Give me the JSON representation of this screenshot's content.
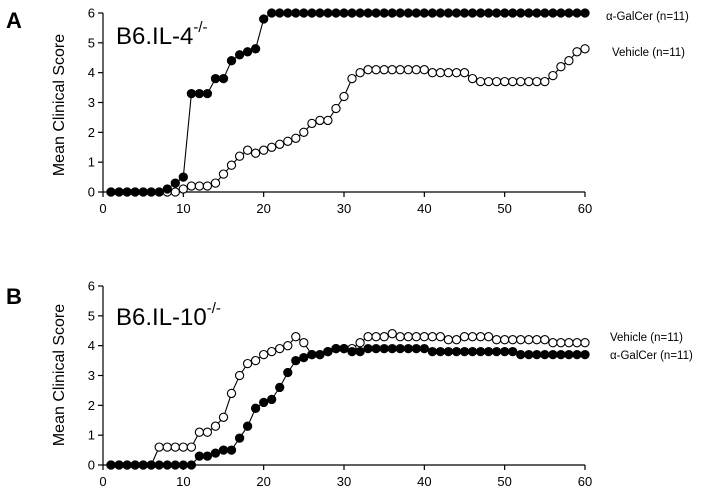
{
  "chart_data": [
    {
      "type": "line",
      "panel": "A",
      "strain": {
        "main": "B6.IL-4",
        "sup": "-/-"
      },
      "xlabel": "",
      "ylabel": "Mean Clinical Score",
      "xlim": [
        0,
        60
      ],
      "ylim": [
        0,
        6
      ],
      "xticks": [
        0,
        10,
        20,
        30,
        40,
        50,
        60
      ],
      "yticks": [
        0,
        1,
        2,
        3,
        4,
        5,
        6
      ],
      "grid": false,
      "legend_placement": "right",
      "series": [
        {
          "name": "α-GalCer (n=11)",
          "marker": "filled-circle",
          "color": "#000000",
          "x": [
            1,
            2,
            3,
            4,
            5,
            6,
            7,
            8,
            9,
            10,
            11,
            12,
            13,
            14,
            15,
            16,
            17,
            18,
            19,
            20,
            21,
            22,
            23,
            24,
            25,
            26,
            27,
            28,
            29,
            30,
            31,
            32,
            33,
            34,
            35,
            36,
            37,
            38,
            39,
            40,
            41,
            42,
            43,
            44,
            45,
            46,
            47,
            48,
            49,
            50,
            51,
            52,
            53,
            54,
            55,
            56,
            57,
            58,
            59,
            60
          ],
          "y": [
            0,
            0,
            0,
            0,
            0,
            0,
            0,
            0.1,
            0.3,
            0.5,
            3.3,
            3.3,
            3.3,
            3.8,
            3.8,
            4.4,
            4.6,
            4.7,
            4.8,
            5.8,
            6,
            6,
            6,
            6,
            6,
            6,
            6,
            6,
            6,
            6,
            6,
            6,
            6,
            6,
            6,
            6,
            6,
            6,
            6,
            6,
            6,
            6,
            6,
            6,
            6,
            6,
            6,
            6,
            6,
            6,
            6,
            6,
            6,
            6,
            6,
            6,
            6,
            6,
            6,
            6
          ]
        },
        {
          "name": "Vehicle (n=11)",
          "marker": "open-circle",
          "color": "#000000",
          "x": [
            1,
            2,
            3,
            4,
            5,
            6,
            7,
            8,
            9,
            10,
            11,
            12,
            13,
            14,
            15,
            16,
            17,
            18,
            19,
            20,
            21,
            22,
            23,
            24,
            25,
            26,
            27,
            28,
            29,
            30,
            31,
            32,
            33,
            34,
            35,
            36,
            37,
            38,
            39,
            40,
            41,
            42,
            43,
            44,
            45,
            46,
            47,
            48,
            49,
            50,
            51,
            52,
            53,
            54,
            55,
            56,
            57,
            58,
            59,
            60
          ],
          "y": [
            0,
            0,
            0,
            0,
            0,
            0,
            0,
            0,
            0,
            0.1,
            0.2,
            0.2,
            0.2,
            0.3,
            0.6,
            0.9,
            1.2,
            1.4,
            1.3,
            1.4,
            1.5,
            1.6,
            1.7,
            1.8,
            2.0,
            2.3,
            2.4,
            2.4,
            2.8,
            3.2,
            3.8,
            4.0,
            4.1,
            4.1,
            4.1,
            4.1,
            4.1,
            4.1,
            4.1,
            4.1,
            4.0,
            4.0,
            4.0,
            4.0,
            4.0,
            3.8,
            3.7,
            3.7,
            3.7,
            3.7,
            3.7,
            3.7,
            3.7,
            3.7,
            3.7,
            3.9,
            4.2,
            4.4,
            4.7,
            4.8
          ]
        }
      ]
    },
    {
      "type": "line",
      "panel": "B",
      "strain": {
        "main": "B6.IL-10",
        "sup": "-/-"
      },
      "xlabel": "",
      "ylabel": "Mean Clinical Score",
      "xlim": [
        0,
        60
      ],
      "ylim": [
        0,
        6
      ],
      "xticks": [
        0,
        10,
        20,
        30,
        40,
        50,
        60
      ],
      "yticks": [
        0,
        1,
        2,
        3,
        4,
        5,
        6
      ],
      "grid": false,
      "legend_placement": "right",
      "series": [
        {
          "name": "Vehicle (n=11)",
          "marker": "open-circle",
          "color": "#000000",
          "x": [
            1,
            2,
            3,
            4,
            5,
            6,
            7,
            8,
            9,
            10,
            11,
            12,
            13,
            14,
            15,
            16,
            17,
            18,
            19,
            20,
            21,
            22,
            23,
            24,
            25,
            26,
            27,
            28,
            29,
            30,
            31,
            32,
            33,
            34,
            35,
            36,
            37,
            38,
            39,
            40,
            41,
            42,
            43,
            44,
            45,
            46,
            47,
            48,
            49,
            50,
            51,
            52,
            53,
            54,
            55,
            56,
            57,
            58,
            59,
            60
          ],
          "y": [
            0,
            0,
            0,
            0,
            0,
            0,
            0.6,
            0.6,
            0.6,
            0.6,
            0.6,
            1.1,
            1.1,
            1.3,
            1.6,
            2.4,
            3.0,
            3.4,
            3.5,
            3.7,
            3.8,
            3.9,
            4.0,
            4.3,
            4.1,
            3.7,
            3.7,
            3.8,
            3.9,
            3.9,
            3.9,
            4.1,
            4.3,
            4.3,
            4.3,
            4.4,
            4.3,
            4.3,
            4.3,
            4.3,
            4.3,
            4.3,
            4.2,
            4.2,
            4.3,
            4.3,
            4.3,
            4.3,
            4.2,
            4.2,
            4.2,
            4.2,
            4.2,
            4.2,
            4.2,
            4.1,
            4.1,
            4.1,
            4.1,
            4.1
          ]
        },
        {
          "name": "α-GalCer (n=11)",
          "marker": "filled-circle",
          "color": "#000000",
          "x": [
            1,
            2,
            3,
            4,
            5,
            6,
            7,
            8,
            9,
            10,
            11,
            12,
            13,
            14,
            15,
            16,
            17,
            18,
            19,
            20,
            21,
            22,
            23,
            24,
            25,
            26,
            27,
            28,
            29,
            30,
            31,
            32,
            33,
            34,
            35,
            36,
            37,
            38,
            39,
            40,
            41,
            42,
            43,
            44,
            45,
            46,
            47,
            48,
            49,
            50,
            51,
            52,
            53,
            54,
            55,
            56,
            57,
            58,
            59,
            60
          ],
          "y": [
            0,
            0,
            0,
            0,
            0,
            0,
            0,
            0,
            0,
            0,
            0,
            0.3,
            0.3,
            0.4,
            0.5,
            0.5,
            0.9,
            1.3,
            1.9,
            2.1,
            2.2,
            2.6,
            3.1,
            3.5,
            3.6,
            3.7,
            3.7,
            3.8,
            3.9,
            3.9,
            3.8,
            3.8,
            3.9,
            3.9,
            3.9,
            3.9,
            3.9,
            3.9,
            3.9,
            3.9,
            3.8,
            3.8,
            3.8,
            3.8,
            3.8,
            3.8,
            3.8,
            3.8,
            3.8,
            3.8,
            3.8,
            3.7,
            3.7,
            3.7,
            3.7,
            3.7,
            3.7,
            3.7,
            3.7,
            3.7
          ]
        }
      ]
    }
  ]
}
